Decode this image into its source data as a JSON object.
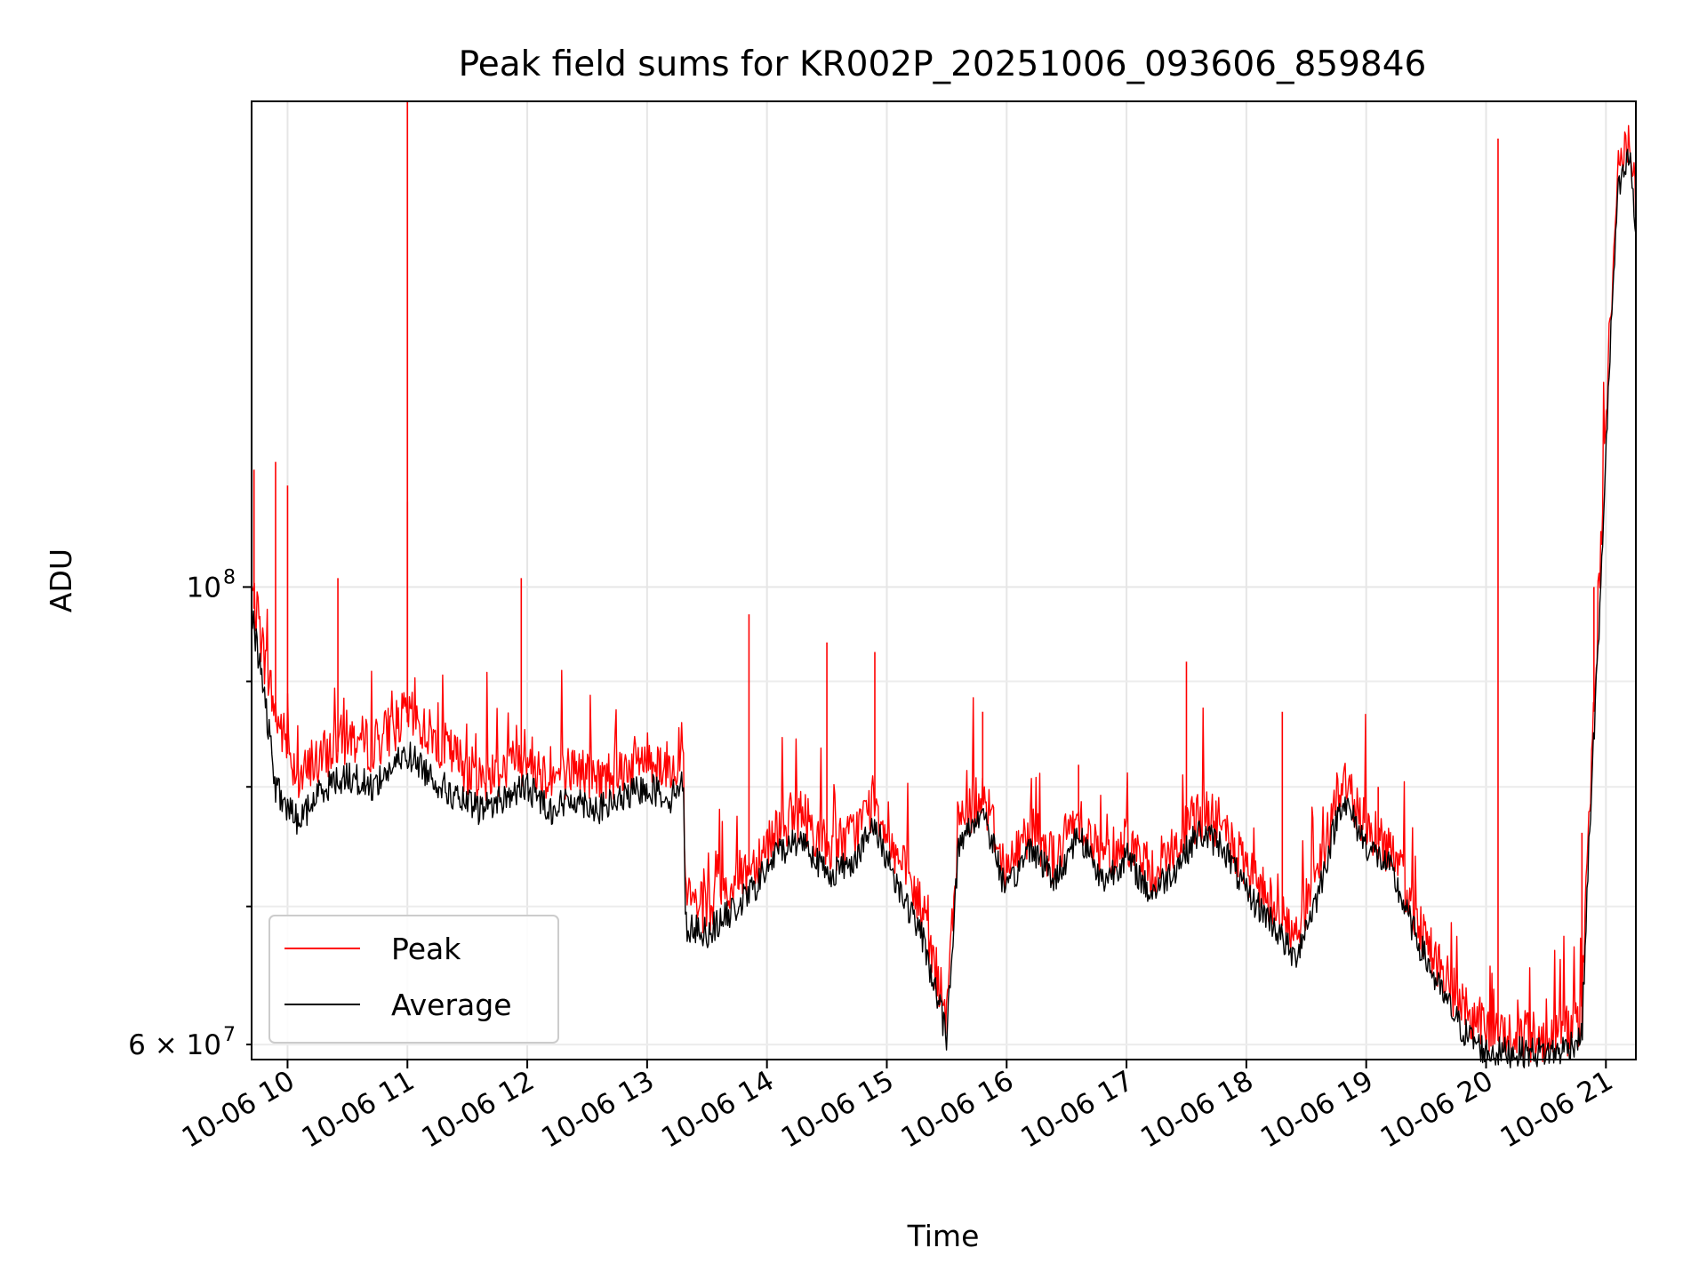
{
  "chart_data": {
    "type": "line",
    "title": "Peak field sums for KR002P_20251006_093606_859846",
    "xlabel": "Time",
    "ylabel": "ADU",
    "yscale": "log",
    "grid": true,
    "legend_position": "lower-left",
    "xlim": [
      9.7,
      21.25
    ],
    "ylim": [
      59000000,
      172000000
    ],
    "x_ticks": [
      10,
      11,
      12,
      13,
      14,
      15,
      16,
      17,
      18,
      19,
      20,
      21
    ],
    "x_tick_labels": [
      "10-06 10",
      "10-06 11",
      "10-06 12",
      "10-06 13",
      "10-06 14",
      "10-06 15",
      "10-06 16",
      "10-06 17",
      "10-06 18",
      "10-06 19",
      "10-06 20",
      "10-06 21"
    ],
    "y_major_ticks": [
      100000000
    ],
    "y_major_labels": [
      {
        "base": "10",
        "exp": "8"
      }
    ],
    "y_minor_ticks": [
      60000000,
      70000000,
      80000000,
      90000000
    ],
    "y_minor_labels": [
      {
        "value": 60000000,
        "mant": "6",
        "times": "×",
        "base": "10",
        "exp": "7"
      }
    ],
    "series": [
      {
        "name": "Peak",
        "color": "#ff0000",
        "x": [
          9.7,
          9.8,
          9.9,
          10.0,
          10.1,
          10.3,
          10.5,
          10.7,
          10.9,
          11.0,
          11.2,
          11.4,
          11.6,
          11.8,
          12.0,
          12.2,
          12.4,
          12.6,
          12.8,
          13.0,
          13.2,
          13.3,
          13.32,
          13.5,
          13.7,
          13.9,
          14.1,
          14.3,
          14.5,
          14.7,
          14.9,
          15.1,
          15.3,
          15.5,
          15.6,
          15.8,
          16.0,
          16.2,
          16.4,
          16.6,
          16.8,
          17.0,
          17.2,
          17.4,
          17.6,
          17.8,
          18.0,
          18.2,
          18.4,
          18.6,
          18.8,
          19.0,
          19.2,
          19.4,
          19.6,
          19.8,
          20.0,
          20.2,
          20.4,
          20.6,
          20.8,
          20.95,
          21.1,
          21.2,
          21.25
        ],
        "y": [
          99000000,
          92000000,
          86000000,
          83000000,
          80000000,
          82000000,
          84000000,
          83000000,
          85000000,
          86000000,
          84000000,
          82000000,
          80000000,
          81000000,
          82000000,
          80000000,
          81000000,
          80000000,
          81000000,
          82000000,
          81000000,
          83000000,
          70000000,
          69000000,
          71000000,
          73000000,
          76000000,
          77000000,
          74000000,
          75000000,
          78000000,
          73000000,
          69000000,
          61000000,
          76000000,
          79000000,
          72000000,
          76000000,
          73000000,
          77000000,
          73000000,
          75000000,
          72000000,
          74000000,
          77000000,
          76000000,
          72000000,
          70000000,
          67000000,
          72000000,
          80000000,
          76000000,
          74000000,
          69000000,
          65000000,
          62000000,
          60500000,
          60000000,
          60000000,
          60000000,
          61000000,
          100000000,
          158000000,
          165000000,
          150000000
        ],
        "spikes": [
          [
            9.72,
            114000000
          ],
          [
            9.9,
            115000000
          ],
          [
            10.0,
            112000000
          ],
          [
            10.42,
            101000000
          ],
          [
            11.0,
            172000000
          ],
          [
            11.0,
            110000000
          ],
          [
            11.95,
            101000000
          ],
          [
            13.85,
            97000000
          ],
          [
            14.5,
            94000000
          ],
          [
            14.9,
            93000000
          ],
          [
            15.8,
            87000000
          ],
          [
            16.6,
            82000000
          ],
          [
            17.5,
            92000000
          ],
          [
            18.3,
            87000000
          ],
          [
            19.1,
            80000000
          ],
          [
            20.1,
            165000000
          ],
          [
            20.8,
            76000000
          ],
          [
            20.9,
            100000000
          ]
        ]
      },
      {
        "name": "Average",
        "color": "#000000",
        "x": [
          9.7,
          9.8,
          9.9,
          10.0,
          10.1,
          10.3,
          10.5,
          10.7,
          10.9,
          11.0,
          11.2,
          11.4,
          11.6,
          11.8,
          12.0,
          12.2,
          12.4,
          12.6,
          12.8,
          13.0,
          13.2,
          13.3,
          13.32,
          13.5,
          13.7,
          13.9,
          14.1,
          14.3,
          14.5,
          14.7,
          14.9,
          15.1,
          15.3,
          15.5,
          15.6,
          15.8,
          16.0,
          16.2,
          16.4,
          16.6,
          16.8,
          17.0,
          17.2,
          17.4,
          17.6,
          17.8,
          18.0,
          18.2,
          18.4,
          18.6,
          18.8,
          19.0,
          19.2,
          19.4,
          19.6,
          19.8,
          20.0,
          20.2,
          20.4,
          20.6,
          20.8,
          20.95,
          21.1,
          21.2,
          21.25
        ],
        "y": [
          97000000,
          89000000,
          80000000,
          78000000,
          77000000,
          80000000,
          81000000,
          80000000,
          82000000,
          83000000,
          81000000,
          79000000,
          78000000,
          79000000,
          80000000,
          78000000,
          79000000,
          78000000,
          79000000,
          80000000,
          79000000,
          81000000,
          68500000,
          68000000,
          69500000,
          71500000,
          74500000,
          75500000,
          72500000,
          73500000,
          76500000,
          71500000,
          67500000,
          60500000,
          75000000,
          78000000,
          71000000,
          75000000,
          72000000,
          76000000,
          72000000,
          74000000,
          71000000,
          73000000,
          76000000,
          75000000,
          71000000,
          69000000,
          66000000,
          71000000,
          79000000,
          75000000,
          73000000,
          68000000,
          64000000,
          61000000,
          59500000,
          59500000,
          59500000,
          59500000,
          60500000,
          97000000,
          155000000,
          162000000,
          148000000
        ]
      }
    ]
  }
}
